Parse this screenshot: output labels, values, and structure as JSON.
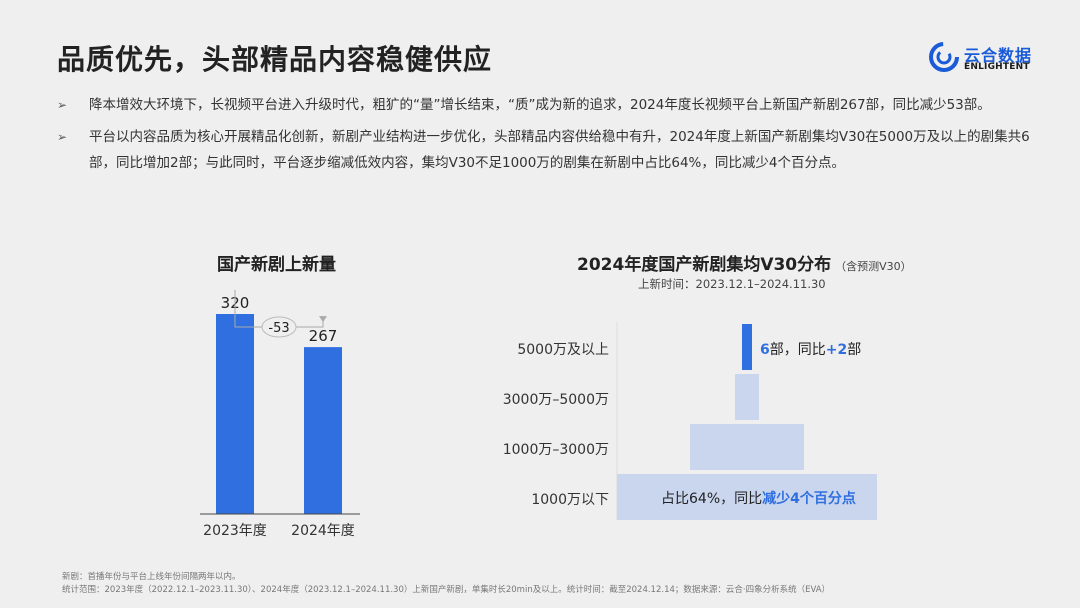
{
  "page": {
    "title": "品质优先，头部精品内容稳健供应",
    "logo": {
      "name_cn": "云合数据",
      "name_en": "ENLIGHTENT",
      "icon": "logo-circle-icon",
      "brand_color": "#1a5bd8"
    },
    "bullets": [
      "降本增效大环境下，长视频平台进入升级时代，粗犷的“量”增长结束，“质”成为新的追求，2024年度长视频平台上新国产新剧267部，同比减少53部。",
      "平台以内容品质为核心开展精品化创新，新剧产业结构进一步优化，头部精品内容供给稳中有升，2024年度上新国产新剧集均V30在5000万及以上的剧集共6部，同比增加2部；与此同时，平台逐步缩减低效内容，集均V30不足1000万的剧集在新剧中占比64%，同比减少4个百分点。"
    ],
    "footer": [
      "新剧：首播年份与平台上线年份间隔两年以内。",
      "统计范围：2023年度（2022.12.1–2023.11.30）、2024年度（2023.12.1–2024.11.30）上新国产新剧，单集时长20min及以上。统计时间：截至2024.12.14；数据来源：云合·四象分析系统（EVA）"
    ]
  },
  "chart_data": [
    {
      "type": "bar",
      "title": "国产新剧上新量",
      "categories": [
        "2023年度",
        "2024年度"
      ],
      "values": [
        320,
        267
      ],
      "diff_label": "-53",
      "ylim": [
        0,
        400
      ],
      "grid": false,
      "color": "#2f6fe0"
    },
    {
      "type": "bar",
      "orientation": "horizontal-funnel",
      "title": "2024年度国产新剧集均V30分布",
      "title_note": "（含预测V30）",
      "subtitle": "上新时间：2023.12.1–2024.11.30",
      "categories": [
        "5000万及以上",
        "3000万–5000万",
        "1000万–3000万",
        "1000万以下"
      ],
      "annotations": [
        {
          "category": "5000万及以上",
          "count": "6",
          "text_mid": "部，同比",
          "highlight": "+2",
          "text_end": "部"
        },
        {
          "category": "1000万以下",
          "text_start": "占比64%，同比",
          "highlight": "减少4个百分点"
        }
      ],
      "share_note": "1000万以下占比64%",
      "highlight_bar_color": "#2f6fe0",
      "bar_color": "#c9d6ee",
      "highlight_text_color": "#2f6fe0"
    }
  ]
}
